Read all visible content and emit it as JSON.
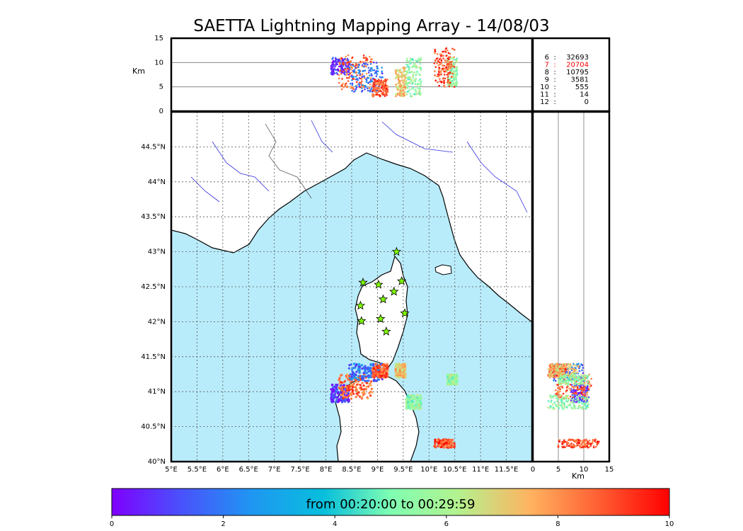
{
  "chart_data": {
    "type": "scatter",
    "title": "SAETTA Lightning Mapping Array - 14/08/03",
    "map": {
      "lon_range": [
        5.0,
        12.0
      ],
      "lat_range": [
        40.0,
        45.0
      ],
      "lon_ticks": [
        "5°E",
        "5.5°E",
        "6°E",
        "6.5°E",
        "7°E",
        "7.5°E",
        "8°E",
        "8.5°E",
        "9°E",
        "9.5°E",
        "10°E",
        "10.5°E",
        "11°E",
        "11.5°E"
      ],
      "lat_ticks": [
        "40°N",
        "40.5°N",
        "41°N",
        "41.5°N",
        "42°N",
        "42.5°N",
        "43°N",
        "43.5°N",
        "44°N",
        "44.5°N"
      ],
      "stations": [
        {
          "lon": 9.37,
          "lat": 43.0
        },
        {
          "lon": 8.72,
          "lat": 42.56
        },
        {
          "lon": 9.02,
          "lat": 42.53
        },
        {
          "lon": 9.47,
          "lat": 42.58
        },
        {
          "lon": 9.32,
          "lat": 42.43
        },
        {
          "lon": 9.11,
          "lat": 42.32
        },
        {
          "lon": 8.67,
          "lat": 42.23
        },
        {
          "lon": 9.53,
          "lat": 42.12
        },
        {
          "lon": 8.69,
          "lat": 42.01
        },
        {
          "lon": 9.06,
          "lat": 42.04
        },
        {
          "lon": 9.17,
          "lat": 41.86
        }
      ]
    },
    "alt_plot": {
      "ylabel": "Km",
      "y_range": [
        0,
        15
      ],
      "y_ticks": [
        "0",
        "5",
        "10",
        "15"
      ]
    },
    "side_plot": {
      "xlabel": "Km",
      "x_range": [
        0,
        15
      ],
      "x_ticks": [
        "0",
        "5",
        "10",
        "15"
      ]
    },
    "station_counts": [
      {
        "stations": "6",
        "count": "32693",
        "color": "#000000"
      },
      {
        "stations": "7",
        "count": "20704",
        "color": "#ff0000"
      },
      {
        "stations": "8",
        "count": "10795",
        "color": "#000000"
      },
      {
        "stations": "9",
        "count": "3581",
        "color": "#000000"
      },
      {
        "stations": "10",
        "count": "555",
        "color": "#000000"
      },
      {
        "stations": "11",
        "count": "14",
        "color": "#000000"
      },
      {
        "stations": "12",
        "count": "0",
        "color": "#000000"
      }
    ],
    "clusters": [
      {
        "lon_range": [
          8.1,
          8.45
        ],
        "lat_range": [
          40.85,
          41.1
        ],
        "alt_range": [
          7.5,
          11.0
        ],
        "time": 0.8
      },
      {
        "lon_range": [
          8.25,
          8.9
        ],
        "lat_range": [
          40.9,
          41.25
        ],
        "alt_range": [
          4.5,
          11.5
        ],
        "time": 8.5
      },
      {
        "lon_range": [
          8.45,
          9.1
        ],
        "lat_range": [
          41.15,
          41.4
        ],
        "alt_range": [
          4.0,
          10.0
        ],
        "time": 1.8
      },
      {
        "lon_range": [
          8.9,
          9.2
        ],
        "lat_range": [
          41.2,
          41.4
        ],
        "alt_range": [
          3.0,
          6.5
        ],
        "time": 8.8
      },
      {
        "lon_range": [
          9.35,
          9.55
        ],
        "lat_range": [
          41.2,
          41.4
        ],
        "alt_range": [
          3.0,
          9.0
        ],
        "time": 7.2
      },
      {
        "lon_range": [
          9.55,
          9.85
        ],
        "lat_range": [
          40.75,
          40.95
        ],
        "alt_range": [
          3.0,
          11.0
        ],
        "time": 5.5
      },
      {
        "lon_range": [
          10.35,
          10.55
        ],
        "lat_range": [
          41.1,
          41.25
        ],
        "alt_range": [
          5.0,
          11.0
        ],
        "time": 5.6
      },
      {
        "lon_range": [
          10.1,
          10.5
        ],
        "lat_range": [
          40.2,
          40.32
        ],
        "alt_range": [
          5.0,
          13.0
        ],
        "time": 9.0
      }
    ],
    "colorbar": {
      "label": "from 00:20:00 to 00:29:59",
      "ticks": [
        "0",
        "2",
        "4",
        "6",
        "8",
        "10"
      ],
      "range": [
        0,
        10
      ]
    }
  }
}
